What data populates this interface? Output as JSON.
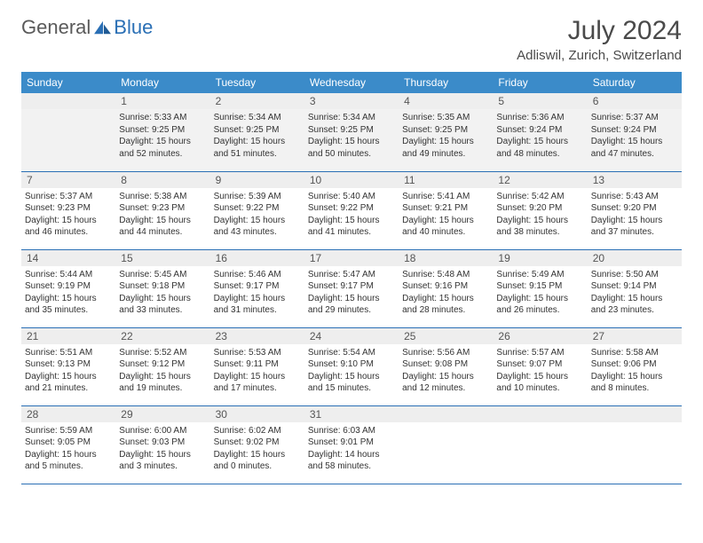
{
  "logo": {
    "text1": "General",
    "text2": "Blue"
  },
  "title": "July 2024",
  "location": "Adliswil, Zurich, Switzerland",
  "colors": {
    "header_bg": "#3b8bc9",
    "header_text": "#ffffff",
    "rule": "#2a6fb5",
    "daynum_bg": "#eeeeee",
    "text": "#333333"
  },
  "typography": {
    "title_fontsize": 30,
    "location_fontsize": 15,
    "dayhead_fontsize": 12,
    "body_fontsize": 10
  },
  "day_headers": [
    "Sunday",
    "Monday",
    "Tuesday",
    "Wednesday",
    "Thursday",
    "Friday",
    "Saturday"
  ],
  "weeks": [
    [
      {
        "num": "",
        "empty": true
      },
      {
        "num": "1",
        "sunrise": "Sunrise: 5:33 AM",
        "sunset": "Sunset: 9:25 PM",
        "daylight": "Daylight: 15 hours and 52 minutes."
      },
      {
        "num": "2",
        "sunrise": "Sunrise: 5:34 AM",
        "sunset": "Sunset: 9:25 PM",
        "daylight": "Daylight: 15 hours and 51 minutes."
      },
      {
        "num": "3",
        "sunrise": "Sunrise: 5:34 AM",
        "sunset": "Sunset: 9:25 PM",
        "daylight": "Daylight: 15 hours and 50 minutes."
      },
      {
        "num": "4",
        "sunrise": "Sunrise: 5:35 AM",
        "sunset": "Sunset: 9:25 PM",
        "daylight": "Daylight: 15 hours and 49 minutes."
      },
      {
        "num": "5",
        "sunrise": "Sunrise: 5:36 AM",
        "sunset": "Sunset: 9:24 PM",
        "daylight": "Daylight: 15 hours and 48 minutes."
      },
      {
        "num": "6",
        "sunrise": "Sunrise: 5:37 AM",
        "sunset": "Sunset: 9:24 PM",
        "daylight": "Daylight: 15 hours and 47 minutes."
      }
    ],
    [
      {
        "num": "7",
        "sunrise": "Sunrise: 5:37 AM",
        "sunset": "Sunset: 9:23 PM",
        "daylight": "Daylight: 15 hours and 46 minutes."
      },
      {
        "num": "8",
        "sunrise": "Sunrise: 5:38 AM",
        "sunset": "Sunset: 9:23 PM",
        "daylight": "Daylight: 15 hours and 44 minutes."
      },
      {
        "num": "9",
        "sunrise": "Sunrise: 5:39 AM",
        "sunset": "Sunset: 9:22 PM",
        "daylight": "Daylight: 15 hours and 43 minutes."
      },
      {
        "num": "10",
        "sunrise": "Sunrise: 5:40 AM",
        "sunset": "Sunset: 9:22 PM",
        "daylight": "Daylight: 15 hours and 41 minutes."
      },
      {
        "num": "11",
        "sunrise": "Sunrise: 5:41 AM",
        "sunset": "Sunset: 9:21 PM",
        "daylight": "Daylight: 15 hours and 40 minutes."
      },
      {
        "num": "12",
        "sunrise": "Sunrise: 5:42 AM",
        "sunset": "Sunset: 9:20 PM",
        "daylight": "Daylight: 15 hours and 38 minutes."
      },
      {
        "num": "13",
        "sunrise": "Sunrise: 5:43 AM",
        "sunset": "Sunset: 9:20 PM",
        "daylight": "Daylight: 15 hours and 37 minutes."
      }
    ],
    [
      {
        "num": "14",
        "sunrise": "Sunrise: 5:44 AM",
        "sunset": "Sunset: 9:19 PM",
        "daylight": "Daylight: 15 hours and 35 minutes."
      },
      {
        "num": "15",
        "sunrise": "Sunrise: 5:45 AM",
        "sunset": "Sunset: 9:18 PM",
        "daylight": "Daylight: 15 hours and 33 minutes."
      },
      {
        "num": "16",
        "sunrise": "Sunrise: 5:46 AM",
        "sunset": "Sunset: 9:17 PM",
        "daylight": "Daylight: 15 hours and 31 minutes."
      },
      {
        "num": "17",
        "sunrise": "Sunrise: 5:47 AM",
        "sunset": "Sunset: 9:17 PM",
        "daylight": "Daylight: 15 hours and 29 minutes."
      },
      {
        "num": "18",
        "sunrise": "Sunrise: 5:48 AM",
        "sunset": "Sunset: 9:16 PM",
        "daylight": "Daylight: 15 hours and 28 minutes."
      },
      {
        "num": "19",
        "sunrise": "Sunrise: 5:49 AM",
        "sunset": "Sunset: 9:15 PM",
        "daylight": "Daylight: 15 hours and 26 minutes."
      },
      {
        "num": "20",
        "sunrise": "Sunrise: 5:50 AM",
        "sunset": "Sunset: 9:14 PM",
        "daylight": "Daylight: 15 hours and 23 minutes."
      }
    ],
    [
      {
        "num": "21",
        "sunrise": "Sunrise: 5:51 AM",
        "sunset": "Sunset: 9:13 PM",
        "daylight": "Daylight: 15 hours and 21 minutes."
      },
      {
        "num": "22",
        "sunrise": "Sunrise: 5:52 AM",
        "sunset": "Sunset: 9:12 PM",
        "daylight": "Daylight: 15 hours and 19 minutes."
      },
      {
        "num": "23",
        "sunrise": "Sunrise: 5:53 AM",
        "sunset": "Sunset: 9:11 PM",
        "daylight": "Daylight: 15 hours and 17 minutes."
      },
      {
        "num": "24",
        "sunrise": "Sunrise: 5:54 AM",
        "sunset": "Sunset: 9:10 PM",
        "daylight": "Daylight: 15 hours and 15 minutes."
      },
      {
        "num": "25",
        "sunrise": "Sunrise: 5:56 AM",
        "sunset": "Sunset: 9:08 PM",
        "daylight": "Daylight: 15 hours and 12 minutes."
      },
      {
        "num": "26",
        "sunrise": "Sunrise: 5:57 AM",
        "sunset": "Sunset: 9:07 PM",
        "daylight": "Daylight: 15 hours and 10 minutes."
      },
      {
        "num": "27",
        "sunrise": "Sunrise: 5:58 AM",
        "sunset": "Sunset: 9:06 PM",
        "daylight": "Daylight: 15 hours and 8 minutes."
      }
    ],
    [
      {
        "num": "28",
        "sunrise": "Sunrise: 5:59 AM",
        "sunset": "Sunset: 9:05 PM",
        "daylight": "Daylight: 15 hours and 5 minutes."
      },
      {
        "num": "29",
        "sunrise": "Sunrise: 6:00 AM",
        "sunset": "Sunset: 9:03 PM",
        "daylight": "Daylight: 15 hours and 3 minutes."
      },
      {
        "num": "30",
        "sunrise": "Sunrise: 6:02 AM",
        "sunset": "Sunset: 9:02 PM",
        "daylight": "Daylight: 15 hours and 0 minutes."
      },
      {
        "num": "31",
        "sunrise": "Sunrise: 6:03 AM",
        "sunset": "Sunset: 9:01 PM",
        "daylight": "Daylight: 14 hours and 58 minutes."
      },
      {
        "num": "",
        "empty": true
      },
      {
        "num": "",
        "empty": true
      },
      {
        "num": "",
        "empty": true
      }
    ]
  ]
}
